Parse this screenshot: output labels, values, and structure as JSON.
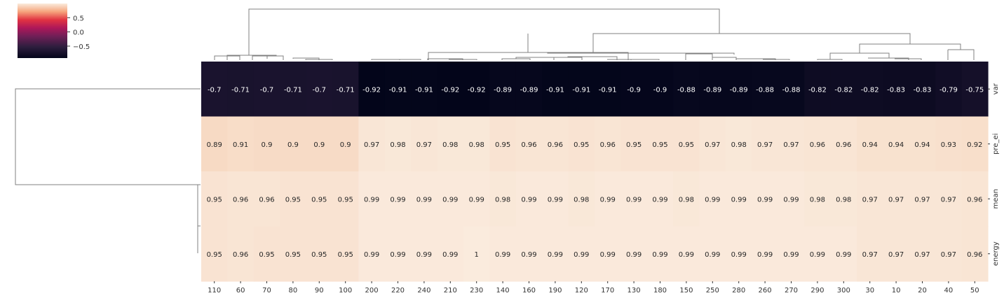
{
  "chart_data": {
    "type": "heatmap",
    "title": "",
    "xlabel": "",
    "ylabel": "",
    "columns": [
      "110",
      "60",
      "70",
      "80",
      "90",
      "100",
      "200",
      "220",
      "240",
      "210",
      "230",
      "140",
      "160",
      "190",
      "120",
      "170",
      "130",
      "180",
      "150",
      "250",
      "280",
      "260",
      "270",
      "290",
      "300",
      "30",
      "10",
      "20",
      "40",
      "50"
    ],
    "rows": [
      "var",
      "pre_ei",
      "mean",
      "energy"
    ],
    "values": [
      [
        -0.7,
        -0.71,
        -0.7,
        -0.71,
        -0.7,
        -0.71,
        -0.92,
        -0.91,
        -0.91,
        -0.92,
        -0.92,
        -0.89,
        -0.89,
        -0.91,
        -0.91,
        -0.91,
        -0.9,
        -0.9,
        -0.88,
        -0.89,
        -0.89,
        -0.88,
        -0.88,
        -0.82,
        -0.82,
        -0.82,
        -0.83,
        -0.83,
        -0.79,
        -0.75
      ],
      [
        0.89,
        0.91,
        0.9,
        0.9,
        0.9,
        0.9,
        0.97,
        0.98,
        0.97,
        0.98,
        0.98,
        0.95,
        0.96,
        0.96,
        0.95,
        0.96,
        0.95,
        0.95,
        0.95,
        0.97,
        0.98,
        0.97,
        0.97,
        0.96,
        0.96,
        0.94,
        0.94,
        0.94,
        0.93,
        0.92
      ],
      [
        0.95,
        0.96,
        0.96,
        0.95,
        0.95,
        0.95,
        0.99,
        0.99,
        0.99,
        0.99,
        0.99,
        0.98,
        0.99,
        0.99,
        0.98,
        0.99,
        0.99,
        0.99,
        0.98,
        0.99,
        0.99,
        0.99,
        0.99,
        0.98,
        0.98,
        0.97,
        0.97,
        0.97,
        0.97,
        0.96
      ],
      [
        0.95,
        0.96,
        0.95,
        0.95,
        0.95,
        0.95,
        0.99,
        0.99,
        0.99,
        0.99,
        1,
        0.99,
        0.99,
        0.99,
        0.99,
        0.99,
        0.99,
        0.99,
        0.99,
        0.99,
        0.99,
        0.99,
        0.99,
        0.99,
        0.99,
        0.97,
        0.97,
        0.97,
        0.97,
        0.96
      ]
    ],
    "value_labels": [
      [
        "-0.7",
        "-0.71",
        "-0.7",
        "-0.71",
        "-0.7",
        "-0.71",
        "-0.92",
        "-0.91",
        "-0.91",
        "-0.92",
        "-0.92",
        "-0.89",
        "-0.89",
        "-0.91",
        "-0.91",
        "-0.91",
        "-0.9",
        "-0.9",
        "-0.88",
        "-0.89",
        "-0.89",
        "-0.88",
        "-0.88",
        "-0.82",
        "-0.82",
        "-0.82",
        "-0.83",
        "-0.83",
        "-0.79",
        "-0.75"
      ],
      [
        "0.89",
        "0.91",
        "0.9",
        "0.9",
        "0.9",
        "0.9",
        "0.97",
        "0.98",
        "0.97",
        "0.98",
        "0.98",
        "0.95",
        "0.96",
        "0.96",
        "0.95",
        "0.96",
        "0.95",
        "0.95",
        "0.95",
        "0.97",
        "0.98",
        "0.97",
        "0.97",
        "0.96",
        "0.96",
        "0.94",
        "0.94",
        "0.94",
        "0.93",
        "0.92"
      ],
      [
        "0.95",
        "0.96",
        "0.96",
        "0.95",
        "0.95",
        "0.95",
        "0.99",
        "0.99",
        "0.99",
        "0.99",
        "0.99",
        "0.98",
        "0.99",
        "0.99",
        "0.98",
        "0.99",
        "0.99",
        "0.99",
        "0.98",
        "0.99",
        "0.99",
        "0.99",
        "0.99",
        "0.98",
        "0.98",
        "0.97",
        "0.97",
        "0.97",
        "0.97",
        "0.96"
      ],
      [
        "0.95",
        "0.96",
        "0.95",
        "0.95",
        "0.95",
        "0.95",
        "0.99",
        "0.99",
        "0.99",
        "0.99",
        "1",
        "0.99",
        "0.99",
        "0.99",
        "0.99",
        "0.99",
        "0.99",
        "0.99",
        "0.99",
        "0.99",
        "0.99",
        "0.99",
        "0.99",
        "0.99",
        "0.99",
        "0.97",
        "0.97",
        "0.97",
        "0.97",
        "0.96"
      ]
    ],
    "color_range": [
      -0.92,
      1.0
    ],
    "colormap": "rocket",
    "colorbar": {
      "ticks": [
        0.5,
        0.0,
        -0.5
      ],
      "tick_labels": [
        "0.5",
        "0.0",
        "−0.5"
      ],
      "placement": "top-left"
    },
    "row_dendrogram": "left",
    "column_dendrogram": "top",
    "grid": false
  }
}
